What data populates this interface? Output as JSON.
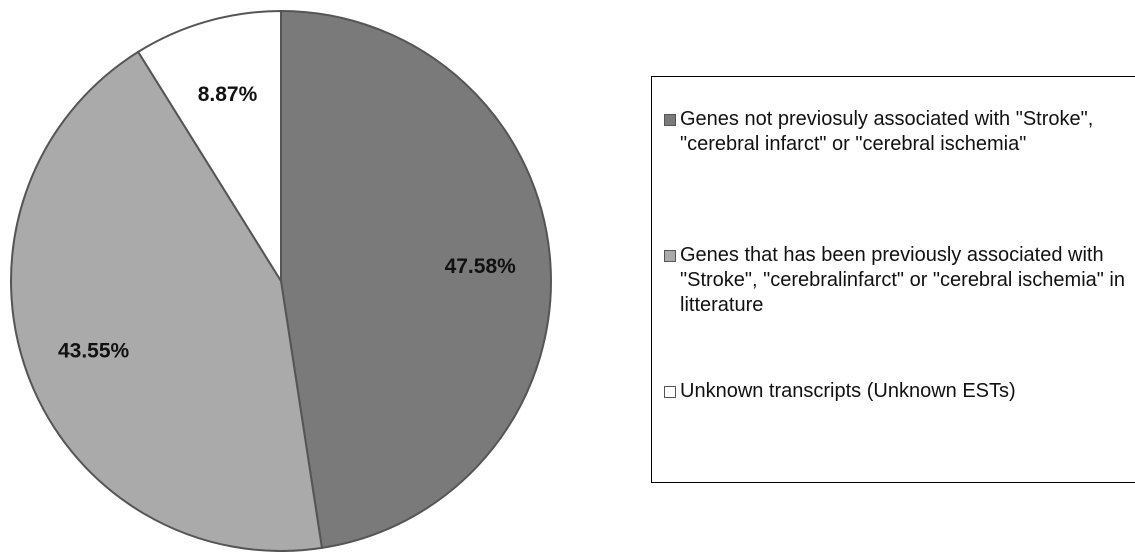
{
  "chart_data": {
    "type": "pie",
    "title": "",
    "slices": [
      {
        "label": "Genes not previosuly associated with \"Stroke\", \"cerebral infarct\" or \"cerebral ischemia\"",
        "value": 47.58,
        "display": "47.58%",
        "color": "#7a7a7a"
      },
      {
        "label": "Genes that has been previously associated with \"Stroke\", \"cerebralinfarct\" or \"cerebral ischemia\" in litterature",
        "value": 43.55,
        "display": "43.55%",
        "color": "#aaaaaa"
      },
      {
        "label": "Unknown transcripts (Unknown ESTs)",
        "value": 8.87,
        "display": "8.87%",
        "color": "#ffffff"
      }
    ],
    "start_angle": "12 o'clock",
    "direction": "clockwise",
    "legend_placement": "right"
  },
  "legend": {
    "items": [
      {
        "text": "Genes not previosuly associated with \"Stroke\", \"cerebral infarct\" or \"cerebral ischemia\"",
        "color": "#7a7a7a"
      },
      {
        "text": "Genes that has been previously associated with \"Stroke\", \"cerebralinfarct\" or \"cerebral ischemia\" in litterature",
        "color": "#aaaaaa"
      },
      {
        "text": "Unknown transcripts (Unknown ESTs)",
        "color": "#ffffff"
      }
    ]
  }
}
